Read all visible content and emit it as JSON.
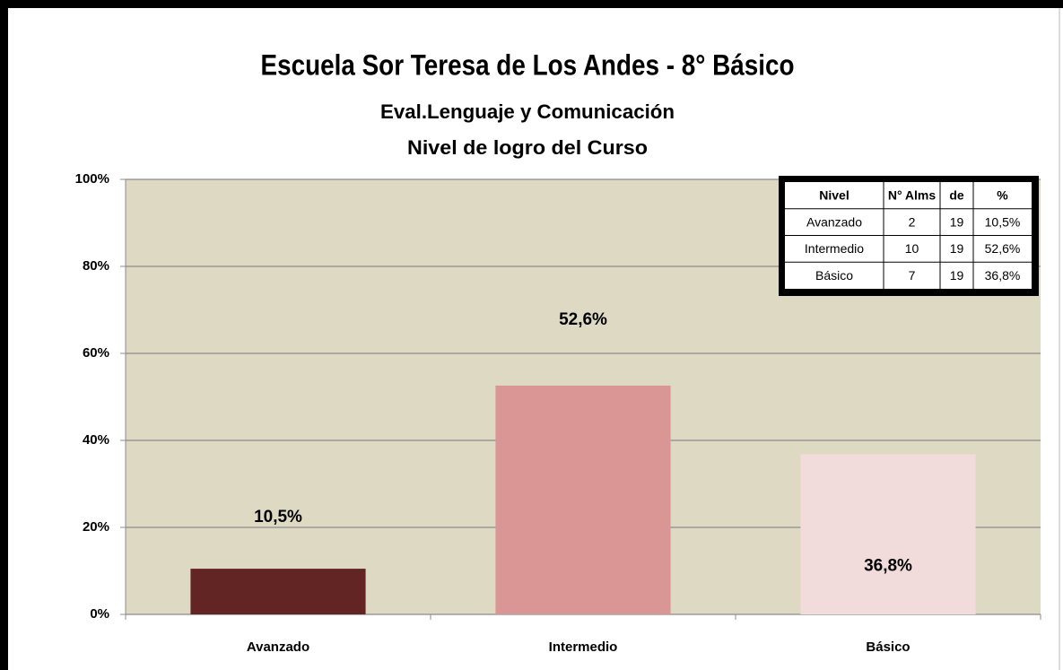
{
  "chart_data": {
    "type": "bar",
    "title": "Escuela Sor Teresa de Los Andes - 8° Básico",
    "subtitle": [
      "Eval.Lenguaje y Comunicación",
      "Nivel de logro del  Curso"
    ],
    "categories": [
      "Avanzado",
      "Intermedio",
      "Básico"
    ],
    "values": [
      10.5,
      52.6,
      36.8
    ],
    "value_labels": [
      "10,5%",
      "52,6%",
      "36,8%"
    ],
    "colors": [
      "#632523",
      "#d99694",
      "#f2dcdb"
    ],
    "ylim": [
      0,
      100
    ],
    "yticks": [
      {
        "value": 0,
        "label": "0%"
      },
      {
        "value": 20,
        "label": "20%"
      },
      {
        "value": 40,
        "label": "40%"
      },
      {
        "value": 60,
        "label": "60%"
      },
      {
        "value": 80,
        "label": "80%"
      },
      {
        "value": 100,
        "label": "100%"
      }
    ],
    "grid": true,
    "table": {
      "header": [
        "Nivel",
        "N° Alms",
        "de",
        "%"
      ],
      "rows": [
        [
          "Avanzado",
          2,
          19,
          "10,5%"
        ],
        [
          "Intermedio",
          10,
          19,
          "52,6%"
        ],
        [
          "Básico",
          7,
          19,
          "36,8%"
        ]
      ]
    }
  }
}
